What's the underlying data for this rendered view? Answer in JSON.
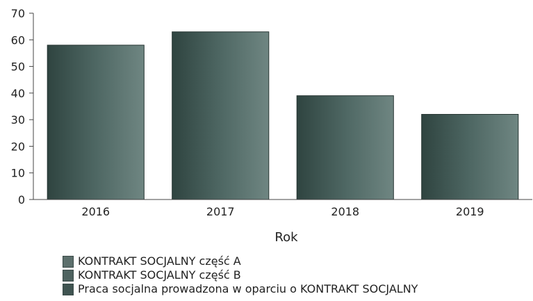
{
  "chart_data": {
    "type": "bar",
    "title": "",
    "xlabel": "Rok",
    "ylabel": "",
    "categories": [
      "2016",
      "2017",
      "2018",
      "2019"
    ],
    "values": [
      58,
      63,
      39,
      32
    ],
    "ylim": [
      0,
      70
    ],
    "yticks": [
      0,
      10,
      20,
      30,
      40,
      50,
      60,
      70
    ],
    "grid": false,
    "legend_position": "bottom-left",
    "legend": [
      "KONTRAKT SOCJALNY część A",
      "KONTRAKT SOCJALNY część B",
      "Praca socjalna prowadzona w oparciu o KONTRAKT SOCJALNY"
    ],
    "colors": {
      "bar_gradient": [
        "#2f4440",
        "#4e6763",
        "#6f8682"
      ],
      "swatches": [
        "#5c6f6c",
        "#4d625f",
        "#3f5451"
      ],
      "axis": "#444444"
    }
  }
}
